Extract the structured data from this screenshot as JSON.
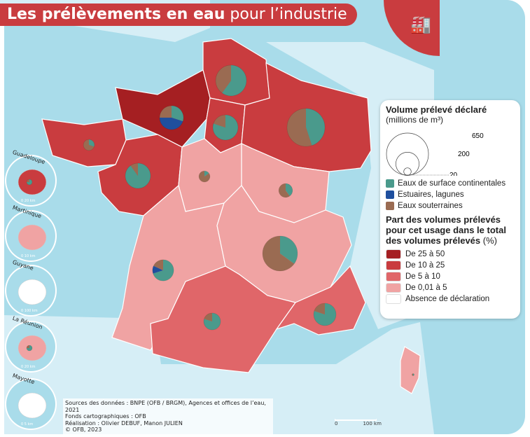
{
  "title": {
    "bold": "Les prélèvements en eau",
    "light": "pour l’industrie"
  },
  "badge_icon": "factory-icon",
  "colors": {
    "surface": "#4a9a8c",
    "estuaires": "#1f4f9e",
    "souterraines": "#9a6b52",
    "c25_50": "#a51f22",
    "c10_25": "#c93c3f",
    "c5_10": "#e06669",
    "c001_5": "#f0a3a3",
    "none": "#ffffff",
    "sea": "#a9dcea"
  },
  "legend": {
    "volume_title": "Volume prélevé déclaré",
    "volume_unit": "(millions de m³)",
    "volume_refs": [
      "650",
      "200",
      "20"
    ],
    "types": [
      {
        "label": "Eaux de surface continentales",
        "color": "#4a9a8c"
      },
      {
        "label": "Estuaires, lagunes",
        "color": "#1f4f9e"
      },
      {
        "label": "Eaux souterraines",
        "color": "#9a6b52"
      }
    ],
    "share_title_1": "Part des volumes prélevés",
    "share_title_2": "pour cet usage dans le total",
    "share_title_3": "des volumes prélevés",
    "share_unit": "(%)",
    "classes": [
      {
        "label": "De 25 à 50",
        "color": "#a51f22"
      },
      {
        "label": "De 10 à 25",
        "color": "#c93c3f"
      },
      {
        "label": "De 5 à 10",
        "color": "#e06669"
      },
      {
        "label": "De 0,01 à 5",
        "color": "#f0a3a3"
      },
      {
        "label": "Absence de déclaration",
        "color": "#ffffff"
      }
    ]
  },
  "regions": [
    {
      "id": "hauts-de-france",
      "class": "c10_25",
      "volume_estimate": 350,
      "shares": {
        "surface": 60,
        "estuaires": 0,
        "souterraines": 40
      }
    },
    {
      "id": "normandie",
      "class": "c25_50",
      "volume_estimate": 210,
      "shares": {
        "surface": 30,
        "estuaires": 45,
        "souterraines": 25
      }
    },
    {
      "id": "ile-de-france",
      "class": "c10_25",
      "volume_estimate": 235,
      "shares": {
        "surface": 80,
        "estuaires": 0,
        "souterraines": 20
      }
    },
    {
      "id": "grand-est",
      "class": "c10_25",
      "volume_estimate": 530,
      "shares": {
        "surface": 45,
        "estuaires": 0,
        "souterraines": 55
      }
    },
    {
      "id": "bretagne",
      "class": "c10_25",
      "volume_estimate": 45,
      "shares": {
        "surface": 30,
        "estuaires": 0,
        "souterraines": 70
      }
    },
    {
      "id": "pays-de-la-loire",
      "class": "c10_25",
      "volume_estimate": 235,
      "shares": {
        "surface": 90,
        "estuaires": 0,
        "souterraines": 10
      }
    },
    {
      "id": "centre-val-de-loire",
      "class": "c001_5",
      "volume_estimate": 45,
      "shares": {
        "surface": 15,
        "estuaires": 0,
        "souterraines": 85
      }
    },
    {
      "id": "bourgogne-franche-comte",
      "class": "c001_5",
      "volume_estimate": 70,
      "shares": {
        "surface": 40,
        "estuaires": 0,
        "souterraines": 60
      }
    },
    {
      "id": "nouvelle-aquitaine",
      "class": "c001_5",
      "volume_estimate": 165,
      "shares": {
        "surface": 70,
        "estuaires": 12,
        "souterraines": 18
      }
    },
    {
      "id": "auvergne-rhone-alpes",
      "class": "c001_5",
      "volume_estimate": 450,
      "shares": {
        "surface": 35,
        "estuaires": 0,
        "souterraines": 65
      }
    },
    {
      "id": "occitanie",
      "class": "c5_10",
      "volume_estimate": 105,
      "shares": {
        "surface": 80,
        "estuaires": 0,
        "souterraines": 20
      }
    },
    {
      "id": "provence-alpes-cote-d-azur",
      "class": "c5_10",
      "volume_estimate": 185,
      "shares": {
        "surface": 80,
        "estuaires": 0,
        "souterraines": 20
      }
    },
    {
      "id": "corse",
      "class": "c001_5",
      "volume_estimate": 0.5,
      "shares": {
        "surface": 50,
        "estuaires": 0,
        "souterraines": 50
      }
    }
  ],
  "insets": [
    {
      "name": "Guadeloupe",
      "scale": "0    20 km",
      "class": "c10_25"
    },
    {
      "name": "Martinique",
      "scale": "0   10 km",
      "class": "c001_5"
    },
    {
      "name": "Guyane",
      "scale": "0   100 km",
      "class": "none"
    },
    {
      "name": "La Réunion",
      "scale": "0    20 km",
      "class": "c001_5"
    },
    {
      "name": "Mayotte",
      "scale": "0    5 km",
      "class": "none"
    }
  ],
  "sources": [
    "Sources des données : BNPE (OFB / BRGM), Agences et offices de l’eau, 2021",
    "Fonds cartographiques : OFB",
    "Réalisation : Olivier DEBUF, Manon JULIEN",
    "© OFB, 2023"
  ],
  "scale_bar": {
    "start": "0",
    "end": "100 km"
  }
}
